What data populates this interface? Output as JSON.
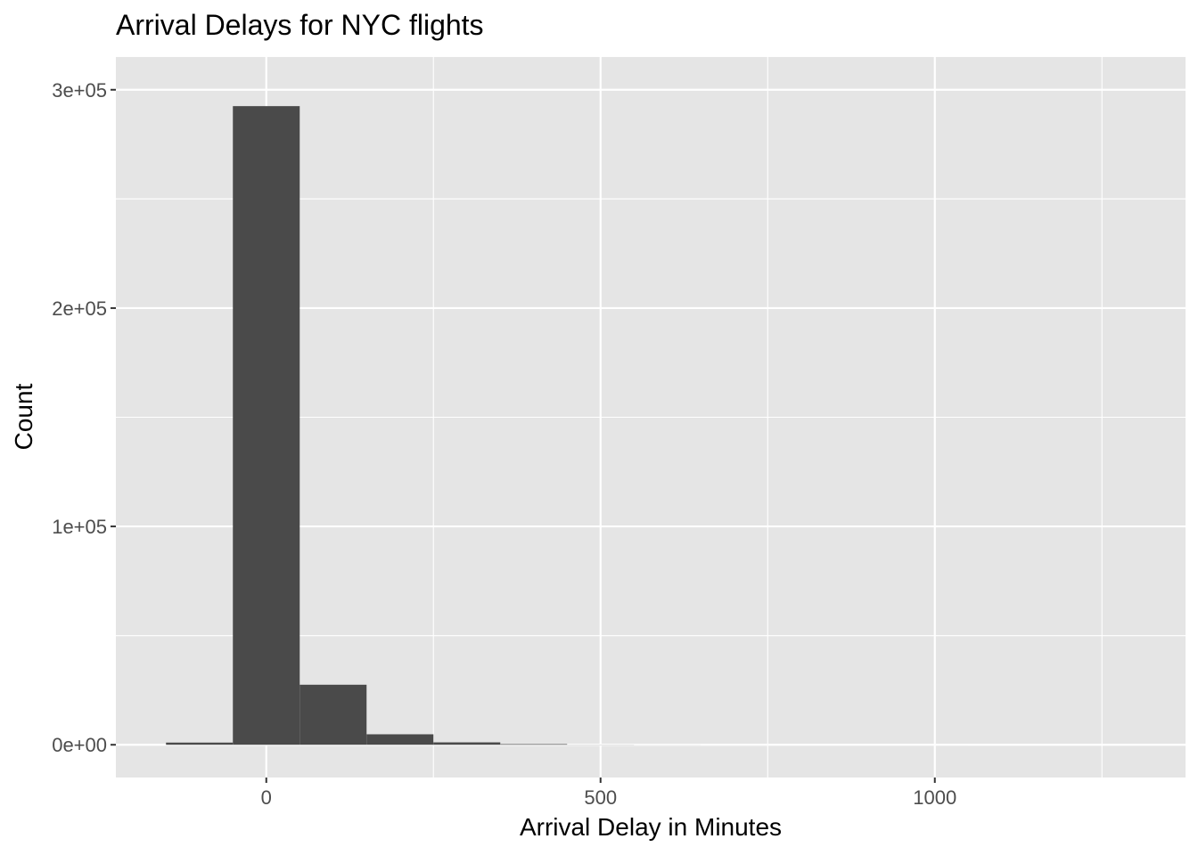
{
  "chart_data": {
    "type": "bar",
    "title": "Arrival Delays for NYC flights",
    "xlabel": "Arrival Delay in Minutes",
    "ylabel": "Count",
    "xlim": [
      -225,
      1375
    ],
    "ylim": [
      -15000,
      315000
    ],
    "x_ticks": [
      0,
      500,
      1000
    ],
    "x_tick_labels": [
      "0",
      "500",
      "1000"
    ],
    "x_minor_breaks": [
      250,
      750,
      1250
    ],
    "y_ticks": [
      0,
      100000,
      200000,
      300000
    ],
    "y_tick_labels": [
      "0e+00",
      "1e+05",
      "2e+05",
      "3e+05"
    ],
    "y_minor_breaks": [
      50000,
      150000,
      250000
    ],
    "bin_width": 100,
    "bins": [
      {
        "x_start": -150,
        "x_end": -50,
        "count": 1000
      },
      {
        "x_start": -50,
        "x_end": 50,
        "count": 292500
      },
      {
        "x_start": 50,
        "x_end": 150,
        "count": 27500
      },
      {
        "x_start": 150,
        "x_end": 250,
        "count": 4800
      },
      {
        "x_start": 250,
        "x_end": 350,
        "count": 1100
      },
      {
        "x_start": 350,
        "x_end": 450,
        "count": 300
      },
      {
        "x_start": 450,
        "x_end": 550,
        "count": 60
      },
      {
        "x_start": 550,
        "x_end": 650,
        "count": 20
      },
      {
        "x_start": 650,
        "x_end": 750,
        "count": 10
      },
      {
        "x_start": 750,
        "x_end": 850,
        "count": 5
      },
      {
        "x_start": 850,
        "x_end": 950,
        "count": 3
      },
      {
        "x_start": 950,
        "x_end": 1050,
        "count": 2
      },
      {
        "x_start": 1050,
        "x_end": 1150,
        "count": 1
      },
      {
        "x_start": 1150,
        "x_end": 1250,
        "count": 1
      },
      {
        "x_start": 1250,
        "x_end": 1350,
        "count": 1
      }
    ],
    "colors": {
      "panel_background": "#e5e5e5",
      "grid": "#ffffff",
      "bar_fill": "#4a4a4a",
      "tick_label": "#4d4d4d"
    },
    "grid": true,
    "legend": "none"
  }
}
